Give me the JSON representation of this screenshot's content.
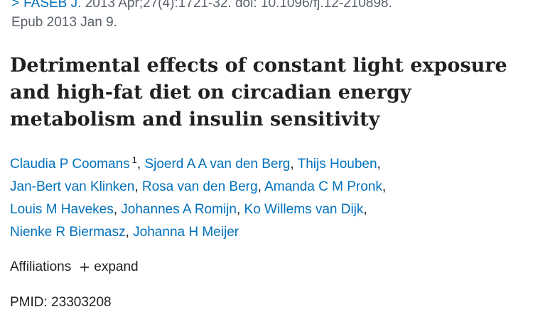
{
  "citation": {
    "journal_link": "FASEB J.",
    "details": "2013 Apr;27(4):1721-32. doi: 10.1096/fj.12-210898.",
    "epub": "Epub 2013 Jan 9."
  },
  "article": {
    "title": "Detrimental effects of constant light exposure and high-fat diet on circadian energy metabolism and insulin sensitivity"
  },
  "authors": [
    {
      "name": "Claudia P Coomans",
      "sup": "1"
    },
    {
      "name": "Sjoerd A A van den Berg"
    },
    {
      "name": "Thijs Houben"
    },
    {
      "name": "Jan-Bert van Klinken"
    },
    {
      "name": "Rosa van den Berg"
    },
    {
      "name": "Amanda C M Pronk"
    },
    {
      "name": "Louis M Havekes"
    },
    {
      "name": "Johannes A Romijn"
    },
    {
      "name": "Ko Willems van Dijk"
    },
    {
      "name": "Nienke R Biermasz"
    },
    {
      "name": "Johanna H Meijer"
    }
  ],
  "affiliations": {
    "label": "Affiliations",
    "expand_label": "expand",
    "expand_icon": "plus-icon"
  },
  "pmid": {
    "text": "PMID: 23303208"
  },
  "colors": {
    "link": "#0071bc",
    "text": "#212121",
    "muted": "#5b616b"
  }
}
